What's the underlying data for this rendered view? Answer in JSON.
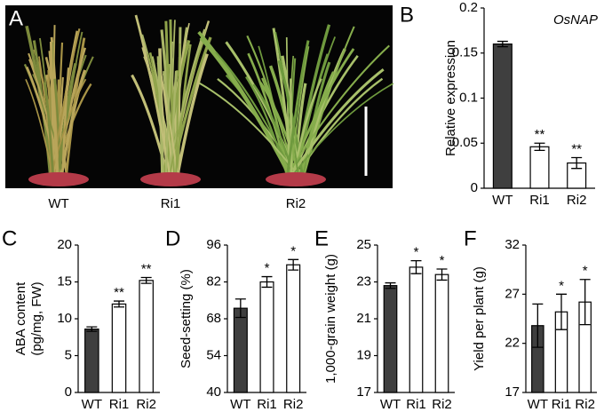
{
  "panel_a": {
    "label": "A",
    "captions": [
      "WT",
      "Ri1",
      "Ri2"
    ]
  },
  "chart_data": [
    {
      "type": "bar",
      "label": "B",
      "title": "OsNAP",
      "ylabel": [
        "Relative expression"
      ],
      "categories": [
        "WT",
        "Ri1",
        "Ri2"
      ],
      "values": [
        0.16,
        0.046,
        0.028
      ],
      "errors": [
        0.003,
        0.004,
        0.006
      ],
      "colors": [
        "#3f3f3f",
        "#ffffff",
        "#ffffff"
      ],
      "value_annotations": [
        null,
        "**",
        "**"
      ],
      "ylim": [
        0,
        0.2
      ],
      "yticks": [
        0,
        0.05,
        0.1,
        0.15,
        0.2
      ]
    },
    {
      "type": "bar",
      "label": "C",
      "ylabel": [
        "ABA content",
        "(pg/mg, FW)"
      ],
      "categories": [
        "WT",
        "Ri1",
        "Ri2"
      ],
      "values": [
        8.6,
        12.0,
        15.2
      ],
      "errors": [
        0.3,
        0.4,
        0.4
      ],
      "colors": [
        "#3f3f3f",
        "#ffffff",
        "#ffffff"
      ],
      "value_annotations": [
        null,
        "**",
        "**"
      ],
      "ylim": [
        0,
        20
      ],
      "yticks": [
        0,
        5,
        10,
        15,
        20
      ]
    },
    {
      "type": "bar",
      "label": "D",
      "ylabel": [
        "Seed-setting (%)"
      ],
      "categories": [
        "WT",
        "Ri1",
        "Ri2"
      ],
      "values": [
        72,
        82,
        88.5
      ],
      "errors": [
        3.5,
        2,
        2
      ],
      "colors": [
        "#3f3f3f",
        "#ffffff",
        "#ffffff"
      ],
      "value_annotations": [
        null,
        "*",
        "*"
      ],
      "ylim": [
        40,
        96
      ],
      "yticks": [
        40,
        54,
        68,
        82,
        96
      ]
    },
    {
      "type": "bar",
      "label": "E",
      "ylabel": [
        "1,000-grain weight (g)"
      ],
      "categories": [
        "WT",
        "Ri1",
        "Ri2"
      ],
      "values": [
        22.8,
        23.8,
        23.4
      ],
      "errors": [
        0.15,
        0.35,
        0.3
      ],
      "colors": [
        "#3f3f3f",
        "#ffffff",
        "#ffffff"
      ],
      "value_annotations": [
        null,
        "*",
        "*"
      ],
      "ylim": [
        17,
        25
      ],
      "yticks": [
        17,
        19,
        21,
        23,
        25
      ]
    },
    {
      "type": "bar",
      "label": "F",
      "ylabel": [
        "Yield per plant (g)"
      ],
      "categories": [
        "WT",
        "Ri1",
        "Ri2"
      ],
      "values": [
        23.8,
        25.2,
        26.2
      ],
      "errors": [
        2.2,
        1.8,
        2.3
      ],
      "colors": [
        "#3f3f3f",
        "#ffffff",
        "#ffffff"
      ],
      "value_annotations": [
        null,
        "*",
        "*"
      ],
      "ylim": [
        17,
        32
      ],
      "yticks": [
        17,
        22,
        27,
        32
      ]
    }
  ]
}
